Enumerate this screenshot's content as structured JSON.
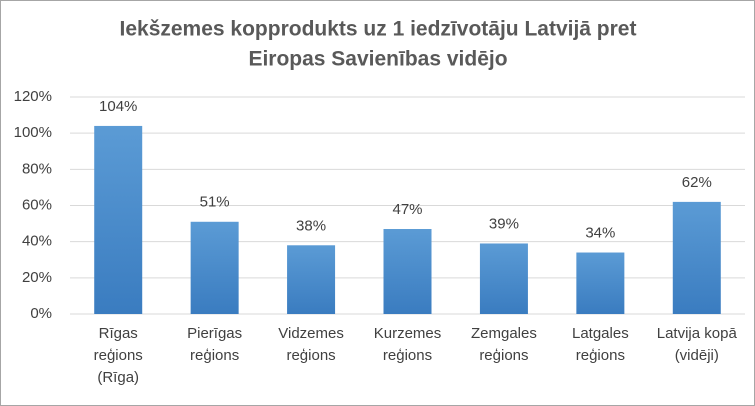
{
  "chart_data": {
    "type": "bar",
    "title": [
      "Iekšzemes kopprodukts uz 1 iedzīvotāju Latvijā pret",
      "Eiropas Savienības vidējo"
    ],
    "categories": [
      [
        "Rīgas",
        "reģions",
        "(Rīga)"
      ],
      [
        "Pierīgas",
        "reģions"
      ],
      [
        "Vidzemes",
        "reģions"
      ],
      [
        "Kurzemes",
        "reģions"
      ],
      [
        "Zemgales",
        "reģions"
      ],
      [
        "Latgales",
        "reģions"
      ],
      [
        "Latvija kopā",
        "(vidēji)"
      ]
    ],
    "values": [
      104,
      51,
      38,
      47,
      39,
      34,
      62
    ],
    "value_labels": [
      "104%",
      "51%",
      "38%",
      "47%",
      "39%",
      "34%",
      "62%"
    ],
    "color": "#5b9bd5",
    "ylim": [
      0,
      120
    ],
    "yticks": [
      {
        "value": 0,
        "label": "0%"
      },
      {
        "value": 20,
        "label": "20%"
      },
      {
        "value": 40,
        "label": "40%"
      },
      {
        "value": 60,
        "label": "60%"
      },
      {
        "value": 80,
        "label": "80%"
      },
      {
        "value": 100,
        "label": "100%"
      },
      {
        "value": 120,
        "label": "120%"
      }
    ],
    "grid": true
  }
}
